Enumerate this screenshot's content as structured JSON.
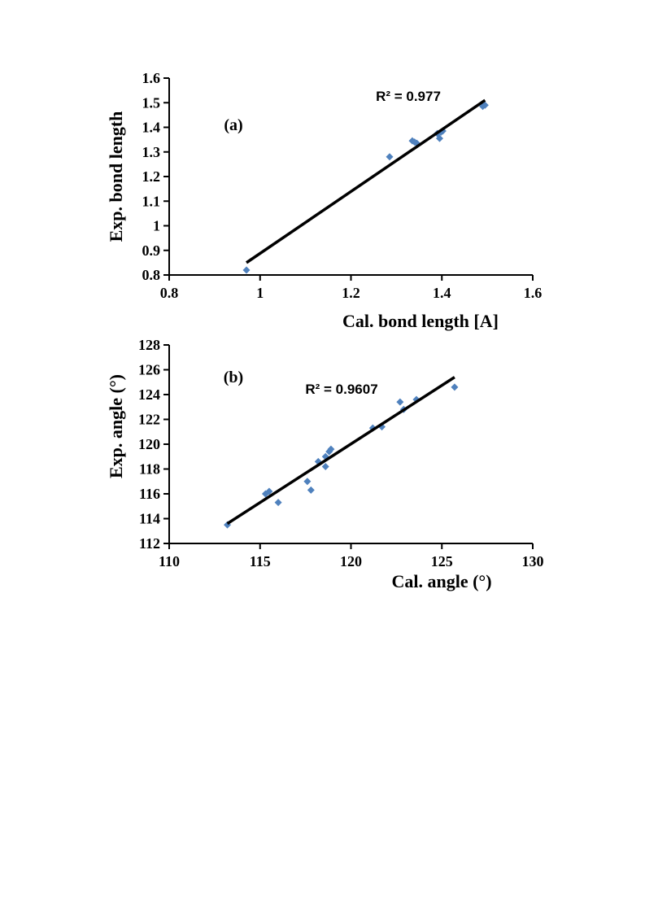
{
  "chart_data": [
    {
      "type": "scatter",
      "panel": "(a)",
      "xlabel": "Cal. bond length [A]",
      "ylabel": "Exp. bond length",
      "xlim": [
        0.8,
        1.6
      ],
      "ylim": [
        0.8,
        1.6
      ],
      "xticks": [
        0.8,
        1,
        1.2,
        1.4,
        1.6
      ],
      "yticks": [
        0.8,
        0.9,
        1,
        1.1,
        1.2,
        1.3,
        1.4,
        1.5,
        1.6
      ],
      "r2_label": "R² = 0.977",
      "point_color": "#4f81bd",
      "points": [
        [
          0.97,
          0.82
        ],
        [
          1.285,
          1.28
        ],
        [
          1.335,
          1.345
        ],
        [
          1.34,
          1.34
        ],
        [
          1.345,
          1.335
        ],
        [
          1.39,
          1.375
        ],
        [
          1.395,
          1.355
        ],
        [
          1.398,
          1.38
        ],
        [
          1.402,
          1.385
        ],
        [
          1.49,
          1.485
        ],
        [
          1.495,
          1.49
        ]
      ],
      "trendline": [
        [
          0.97,
          0.85
        ],
        [
          1.495,
          1.51
        ]
      ],
      "grid": false
    },
    {
      "type": "scatter",
      "panel": "(b)",
      "xlabel": "Cal. angle (°)",
      "ylabel": "Exp. angle (°)",
      "xlim": [
        110,
        130
      ],
      "ylim": [
        112,
        128
      ],
      "xticks": [
        110,
        115,
        120,
        125,
        130
      ],
      "yticks": [
        112,
        114,
        116,
        118,
        120,
        122,
        124,
        126,
        128
      ],
      "r2_label": "R² = 0.9607",
      "point_color": "#4f81bd",
      "points": [
        [
          113.2,
          113.5
        ],
        [
          115.3,
          116.0
        ],
        [
          115.5,
          116.2
        ],
        [
          116.0,
          115.3
        ],
        [
          117.6,
          117.0
        ],
        [
          117.8,
          116.3
        ],
        [
          118.2,
          118.6
        ],
        [
          118.6,
          118.2
        ],
        [
          118.6,
          119.0
        ],
        [
          118.8,
          119.4
        ],
        [
          118.9,
          119.6
        ],
        [
          121.2,
          121.3
        ],
        [
          121.7,
          121.4
        ],
        [
          122.7,
          123.4
        ],
        [
          122.9,
          122.8
        ],
        [
          123.6,
          123.6
        ],
        [
          125.7,
          124.6
        ]
      ],
      "trendline": [
        [
          113.2,
          113.6
        ],
        [
          125.7,
          125.4
        ]
      ],
      "grid": false
    }
  ]
}
